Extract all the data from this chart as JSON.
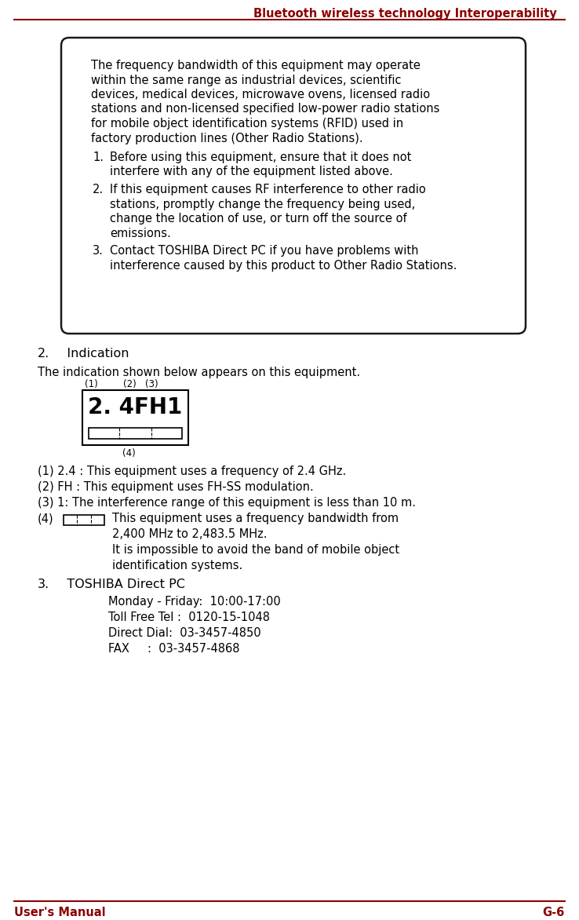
{
  "header_text": "Bluetooth wireless technology Interoperability",
  "header_color": "#8B0000",
  "footer_left": "User's Manual",
  "footer_right": "G-6",
  "footer_color": "#8B0000",
  "line_color": "#8B0000",
  "bg_color": "#ffffff",
  "intro_lines": [
    "The frequency bandwidth of this equipment may operate",
    "within the same range as industrial devices, scientific",
    "devices, medical devices, microwave ovens, licensed radio",
    "stations and non-licensed specified low-power radio stations",
    "for mobile object identification systems (RFID) used in",
    "factory production lines (Other Radio Stations)."
  ],
  "box_items_wrapped": [
    [
      "Before using this equipment, ensure that it does not",
      "interfere with any of the equipment listed above."
    ],
    [
      "If this equipment causes RF interference to other radio",
      "stations, promptly change the frequency being used,",
      "change the location of use, or turn off the source of",
      "emissions."
    ],
    [
      "Contact TOSHIBA Direct PC if you have problems with",
      "interference caused by this product to Other Radio Stations."
    ]
  ],
  "item1": "(1) 2.4 : This equipment uses a frequency of 2.4 GHz.",
  "item2": "(2) FH : This equipment uses FH-SS modulation.",
  "item3": "(3) 1: The interference range of this equipment is less than 10 m.",
  "item4_line1": "This equipment uses a frequency bandwidth from",
  "item4_line2": "2,400 MHz to 2,483.5 MHz.",
  "item4_line3": "It is impossible to avoid the band of mobile object",
  "item4_line4": "identification systems.",
  "contact_lines": [
    "Monday - Friday:  10:00-17:00",
    "Toll Free Tel :  0120-15-1048",
    "Direct Dial:  03-3457-4850",
    "FAX     :  03-3457-4868"
  ]
}
